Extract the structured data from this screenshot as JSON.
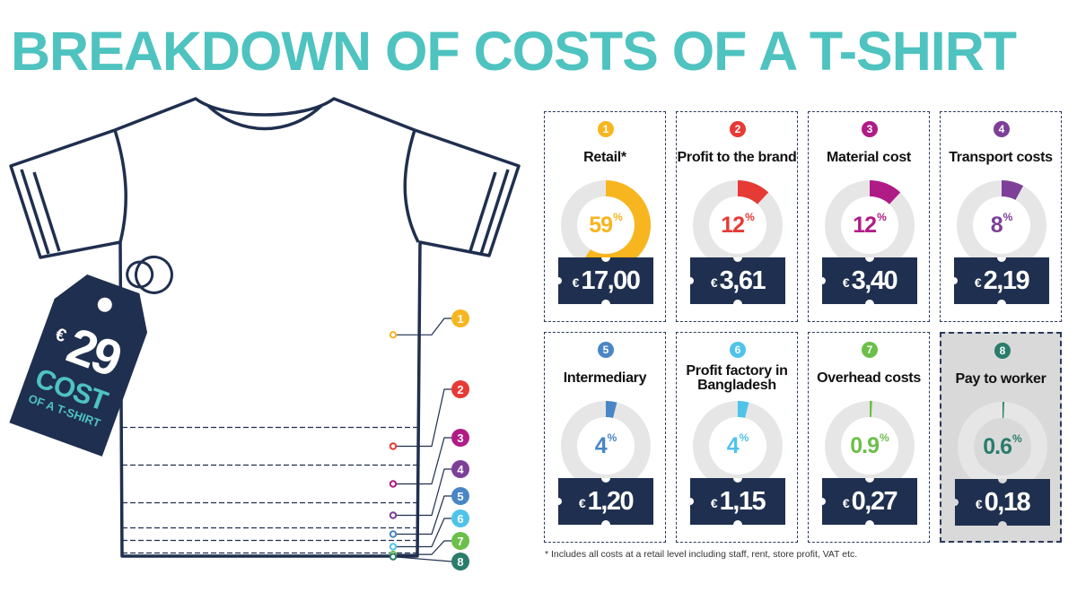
{
  "title": "BREAKDOWN OF COSTS OF A T-SHIRT",
  "tag": {
    "currency": "€",
    "value": "29",
    "line1": "COST",
    "line2": "OF A T-SHIRT"
  },
  "footnote": "* Includes all costs at a retail level including staff, rent, store profit, VAT etc.",
  "colors": {
    "accent_title": "#4ec3c0",
    "navy": "#1f2f4f",
    "donut_bg": "#e6e6e6"
  },
  "chart_data": {
    "type": "pie",
    "title": "BREAKDOWN OF COSTS OF A T-SHIRT",
    "total": "€29",
    "categories": [
      {
        "num": "1",
        "label": "Retail*",
        "percent": 59,
        "percent_label": "59",
        "amount": "17,00",
        "currency": "€",
        "color": "#f7b51f"
      },
      {
        "num": "2",
        "label": "Profit to the brand",
        "percent": 12,
        "percent_label": "12",
        "amount": "3,61",
        "currency": "€",
        "color": "#e63a35"
      },
      {
        "num": "3",
        "label": "Material cost",
        "percent": 12,
        "percent_label": "12",
        "amount": "3,40",
        "currency": "€",
        "color": "#b01c86"
      },
      {
        "num": "4",
        "label": "Transport costs",
        "percent": 8,
        "percent_label": "8",
        "amount": "2,19",
        "currency": "€",
        "color": "#7d3f98"
      },
      {
        "num": "5",
        "label": "Intermediary",
        "percent": 4,
        "percent_label": "4",
        "amount": "1,20",
        "currency": "€",
        "color": "#4a86c5"
      },
      {
        "num": "6",
        "label": "Profit factory in Bangladesh",
        "percent": 4,
        "percent_label": "4",
        "amount": "1,15",
        "currency": "€",
        "color": "#4fc3ea"
      },
      {
        "num": "7",
        "label": "Overhead costs",
        "percent": 0.9,
        "percent_label": "0.9",
        "amount": "0,27",
        "currency": "€",
        "color": "#6cbf4a"
      },
      {
        "num": "8",
        "label": "Pay to worker",
        "percent": 0.6,
        "percent_label": "0.6",
        "amount": "0,18",
        "currency": "€",
        "color": "#2a7c6b",
        "highlighted": true
      }
    ],
    "unit": "%"
  }
}
